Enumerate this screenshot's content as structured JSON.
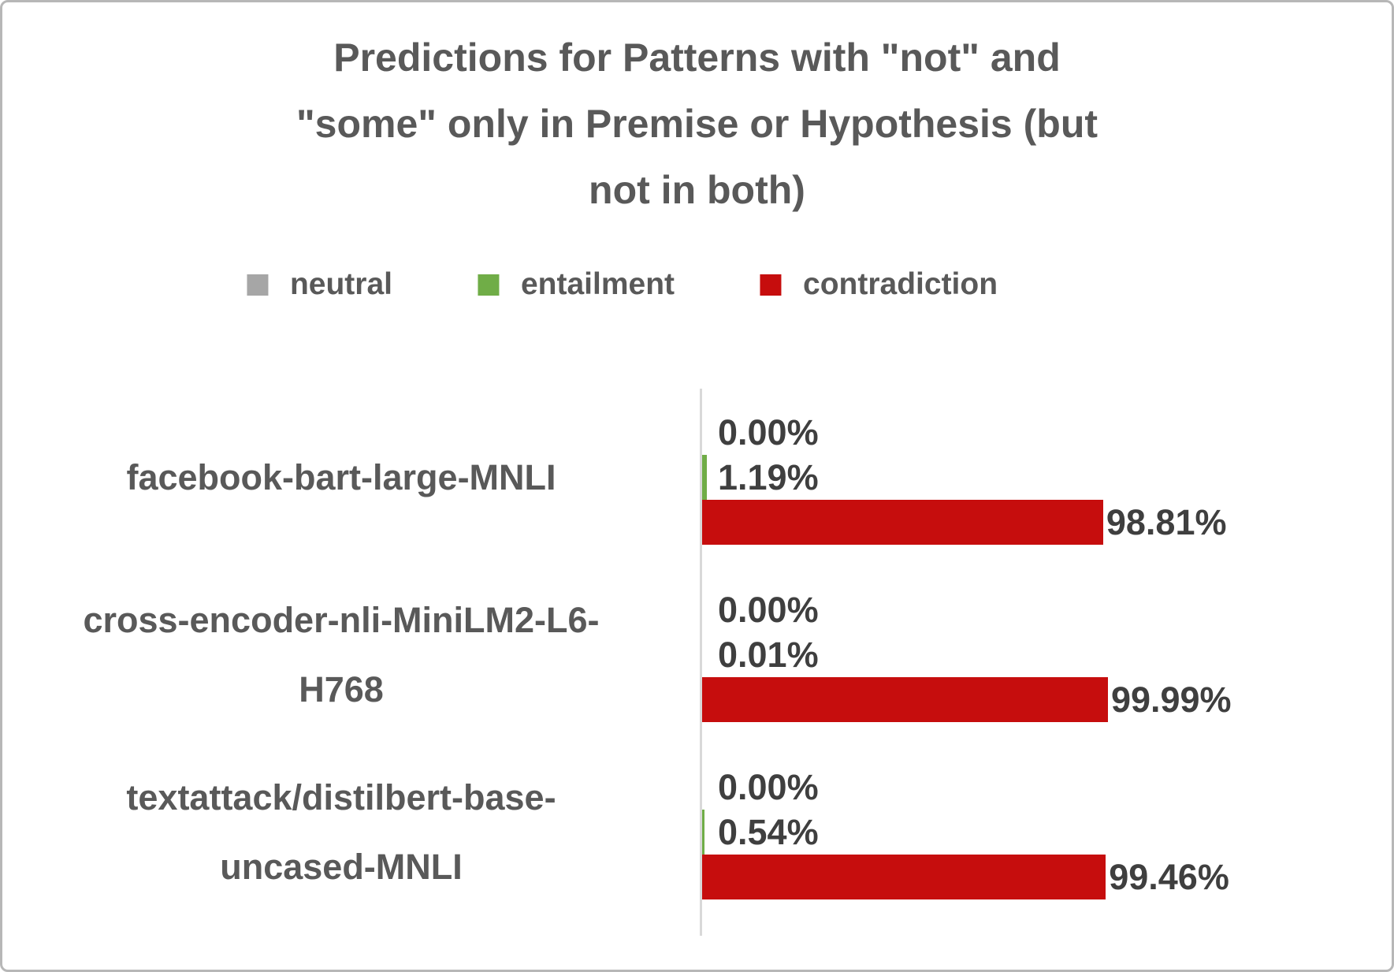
{
  "chart_data": {
    "type": "bar",
    "orientation": "horizontal",
    "title": "Predictions for Patterns with \"not\" and \"some\" only in Premise or Hypothesis (but not in both)",
    "title_lines": [
      "Predictions for Patterns with \"not\" and",
      "\"some\" only in Premise or Hypothesis (but",
      "not in both)"
    ],
    "categories": [
      {
        "name": "facebook-bart-large-MNLI",
        "lines": [
          "facebook-bart-large-MNLI"
        ]
      },
      {
        "name": "cross-encoder-nli-MiniLM2-L6-H768",
        "lines": [
          "cross-encoder-nli-MiniLM2-L6-",
          "H768"
        ]
      },
      {
        "name": "textattack/distilbert-base-uncased-MNLI",
        "lines": [
          "textattack/distilbert-base-",
          "uncased-MNLI"
        ]
      }
    ],
    "series": [
      {
        "name": "neutral",
        "color": "#a6a6a6",
        "values": [
          0.0,
          0.0,
          0.0
        ],
        "labels": [
          "0.00%",
          "0.00%",
          "0.00%"
        ]
      },
      {
        "name": "entailment",
        "color": "#70ad47",
        "values": [
          1.19,
          0.01,
          0.54
        ],
        "labels": [
          "1.19%",
          "0.01%",
          "0.54%"
        ]
      },
      {
        "name": "contradiction",
        "color": "#c60d0d",
        "values": [
          98.81,
          99.99,
          99.46
        ],
        "labels": [
          "98.81%",
          "99.99%",
          "99.46%"
        ]
      }
    ],
    "xlim": [
      0,
      100
    ],
    "grid": false,
    "legend_position": "top",
    "colors": {
      "title_text": "#595959",
      "category_text": "#595959",
      "data_label_text": "#3f3f3f",
      "axis_line": "#d9d9d9",
      "frame_border": "#b7b7b7",
      "background": "#ffffff"
    }
  }
}
